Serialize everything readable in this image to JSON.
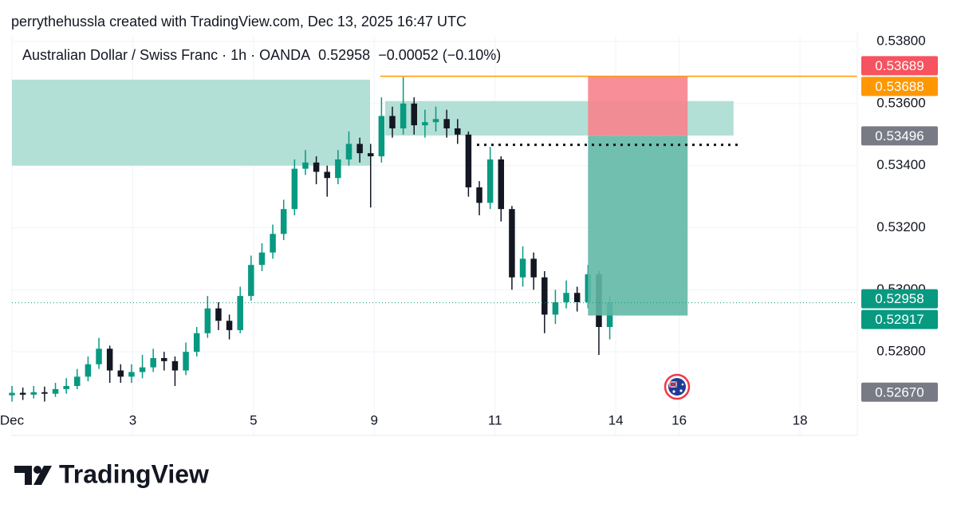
{
  "header": {
    "credit": "perrythehussla created with TradingView.com, Dec 13, 2025 16:47 UTC",
    "symbol": "Australian Dollar / Swiss Franc · 1h · OANDA",
    "last": "0.52958",
    "change": "−0.00052 (−0.10%)"
  },
  "chart_data": {
    "type": "candlestick",
    "xlim": [
      0,
      14
    ],
    "ylim": [
      0.52636,
      0.53818
    ],
    "xticks": [
      {
        "value": 0,
        "label": "Dec"
      },
      {
        "value": 2,
        "label": "3"
      },
      {
        "value": 4,
        "label": "5"
      },
      {
        "value": 6,
        "label": "9"
      },
      {
        "value": 8,
        "label": "11"
      },
      {
        "value": 10,
        "label": "14"
      },
      {
        "value": 11.05,
        "label": "16"
      },
      {
        "value": 13.05,
        "label": "18"
      }
    ],
    "yticks": [
      {
        "value": 0.538,
        "label": "0.53800"
      },
      {
        "value": 0.536,
        "label": "0.53600"
      },
      {
        "value": 0.534,
        "label": "0.53400"
      },
      {
        "value": 0.532,
        "label": "0.53200"
      },
      {
        "value": 0.53,
        "label": "0.53000"
      },
      {
        "value": 0.528,
        "label": "0.52800"
      }
    ],
    "grid": true,
    "up_color": "#089981",
    "down_color": "#131722",
    "x": [
      0,
      0.18,
      0.36,
      0.54,
      0.72,
      0.9,
      1.08,
      1.26,
      1.44,
      1.62,
      1.8,
      1.98,
      2.16,
      2.34,
      2.52,
      2.7,
      2.88,
      3.06,
      3.24,
      3.42,
      3.6,
      3.78,
      3.96,
      4.14,
      4.32,
      4.5,
      4.68,
      4.86,
      5.04,
      5.22,
      5.4,
      5.58,
      5.76,
      5.94,
      6.12,
      6.3,
      6.48,
      6.66,
      6.84,
      7.02,
      7.2,
      7.38,
      7.56,
      7.74,
      7.92,
      8.1,
      8.28,
      8.46,
      8.64,
      8.82,
      9,
      9.18,
      9.36,
      9.54,
      9.72,
      9.9
    ],
    "open": [
      0.5266,
      0.52668,
      0.52662,
      0.5267,
      0.52665,
      0.5268,
      0.5269,
      0.5272,
      0.5276,
      0.5281,
      0.5274,
      0.5272,
      0.52735,
      0.5275,
      0.5278,
      0.5277,
      0.5274,
      0.528,
      0.5286,
      0.5294,
      0.529,
      0.5287,
      0.5298,
      0.5308,
      0.5312,
      0.5318,
      0.5326,
      0.5339,
      0.5341,
      0.5338,
      0.5336,
      0.5342,
      0.5347,
      0.5344,
      0.5343,
      0.5356,
      0.5352,
      0.536,
      0.5353,
      0.5354,
      0.5355,
      0.5352,
      0.535,
      0.5333,
      0.5328,
      0.5342,
      0.5326,
      0.5304,
      0.531,
      0.5304,
      0.5292,
      0.5296,
      0.5299,
      0.5296,
      0.5305,
      0.5288
    ],
    "high": [
      0.5269,
      0.52685,
      0.5269,
      0.52688,
      0.527,
      0.52715,
      0.52745,
      0.52785,
      0.52845,
      0.5282,
      0.5276,
      0.5276,
      0.5279,
      0.5281,
      0.528,
      0.52785,
      0.5283,
      0.5288,
      0.5298,
      0.5296,
      0.5292,
      0.5301,
      0.5311,
      0.5315,
      0.5321,
      0.5329,
      0.5342,
      0.5345,
      0.5343,
      0.534,
      0.5345,
      0.5351,
      0.5349,
      0.5347,
      0.5362,
      0.5359,
      0.53685,
      0.5362,
      0.5358,
      0.5359,
      0.5358,
      0.5355,
      0.5351,
      0.5335,
      0.5346,
      0.5343,
      0.5327,
      0.5314,
      0.5312,
      0.5306,
      0.53,
      0.5303,
      0.5301,
      0.5308,
      0.5306,
      0.5298
    ],
    "low": [
      0.5264,
      0.52645,
      0.5265,
      0.5264,
      0.52655,
      0.52665,
      0.5268,
      0.52705,
      0.52745,
      0.527,
      0.527,
      0.527,
      0.52715,
      0.52735,
      0.5274,
      0.5269,
      0.52725,
      0.52785,
      0.52845,
      0.5287,
      0.5284,
      0.5286,
      0.52965,
      0.5306,
      0.531,
      0.5316,
      0.5324,
      0.5337,
      0.5334,
      0.533,
      0.5334,
      0.534,
      0.5341,
      0.53265,
      0.5341,
      0.5349,
      0.535,
      0.535,
      0.5349,
      0.5351,
      0.5349,
      0.5347,
      0.533,
      0.5324,
      0.5326,
      0.5322,
      0.53,
      0.5301,
      0.53,
      0.5286,
      0.5289,
      0.5294,
      0.5293,
      0.5294,
      0.5279,
      0.5284
    ],
    "close": [
      0.52668,
      0.52662,
      0.5267,
      0.52665,
      0.5268,
      0.5269,
      0.5272,
      0.5276,
      0.5281,
      0.5274,
      0.5272,
      0.52735,
      0.5275,
      0.5278,
      0.5277,
      0.5274,
      0.528,
      0.5286,
      0.5294,
      0.529,
      0.5287,
      0.5298,
      0.5308,
      0.5312,
      0.5318,
      0.5326,
      0.5339,
      0.5341,
      0.5338,
      0.5336,
      0.5342,
      0.5347,
      0.5344,
      0.5343,
      0.5356,
      0.5352,
      0.536,
      0.5353,
      0.5354,
      0.5355,
      0.5352,
      0.535,
      0.5333,
      0.5328,
      0.5342,
      0.5326,
      0.5304,
      0.531,
      0.5304,
      0.5292,
      0.5296,
      0.5299,
      0.5296,
      0.5305,
      0.5288,
      0.52958
    ],
    "zones": [
      {
        "x": [
          0,
          5.93
        ],
        "y": [
          0.534,
          0.53677
        ],
        "color": "#b2dfd6"
      },
      {
        "x": [
          6.18,
          11.95
        ],
        "y": [
          0.53497,
          0.53608
        ],
        "color": "#b2dfd6"
      }
    ],
    "position": {
      "x": [
        9.54,
        11.19
      ],
      "entry": 0.53496,
      "stop": 0.53689,
      "target": 0.52917,
      "stop_color": "#f7838d",
      "target_color": "#62b8a6"
    },
    "hlines": [
      {
        "y": 0.53688,
        "x": [
          6.1,
          14
        ],
        "color": "#ff9800",
        "style": "solid"
      },
      {
        "y": 0.53467,
        "x": [
          7.7,
          12.09
        ],
        "color": "#131722",
        "style": "dotted"
      },
      {
        "y": 0.52958,
        "x": [
          0,
          14
        ],
        "color": "#089981",
        "style": "dotted"
      }
    ],
    "price_labels": [
      {
        "value": 0.53689,
        "color": "#f7525f"
      },
      {
        "value": 0.53688,
        "color": "#ff9800"
      },
      {
        "value": 0.53496,
        "color": "#787b86"
      },
      {
        "value": 0.52958,
        "color": "#089981"
      },
      {
        "value": 0.52917,
        "color": "#089981"
      },
      {
        "value": 0.5267,
        "label": "0.52670",
        "color": "#787b86"
      }
    ]
  },
  "footer": {
    "brand": "TradingView"
  }
}
